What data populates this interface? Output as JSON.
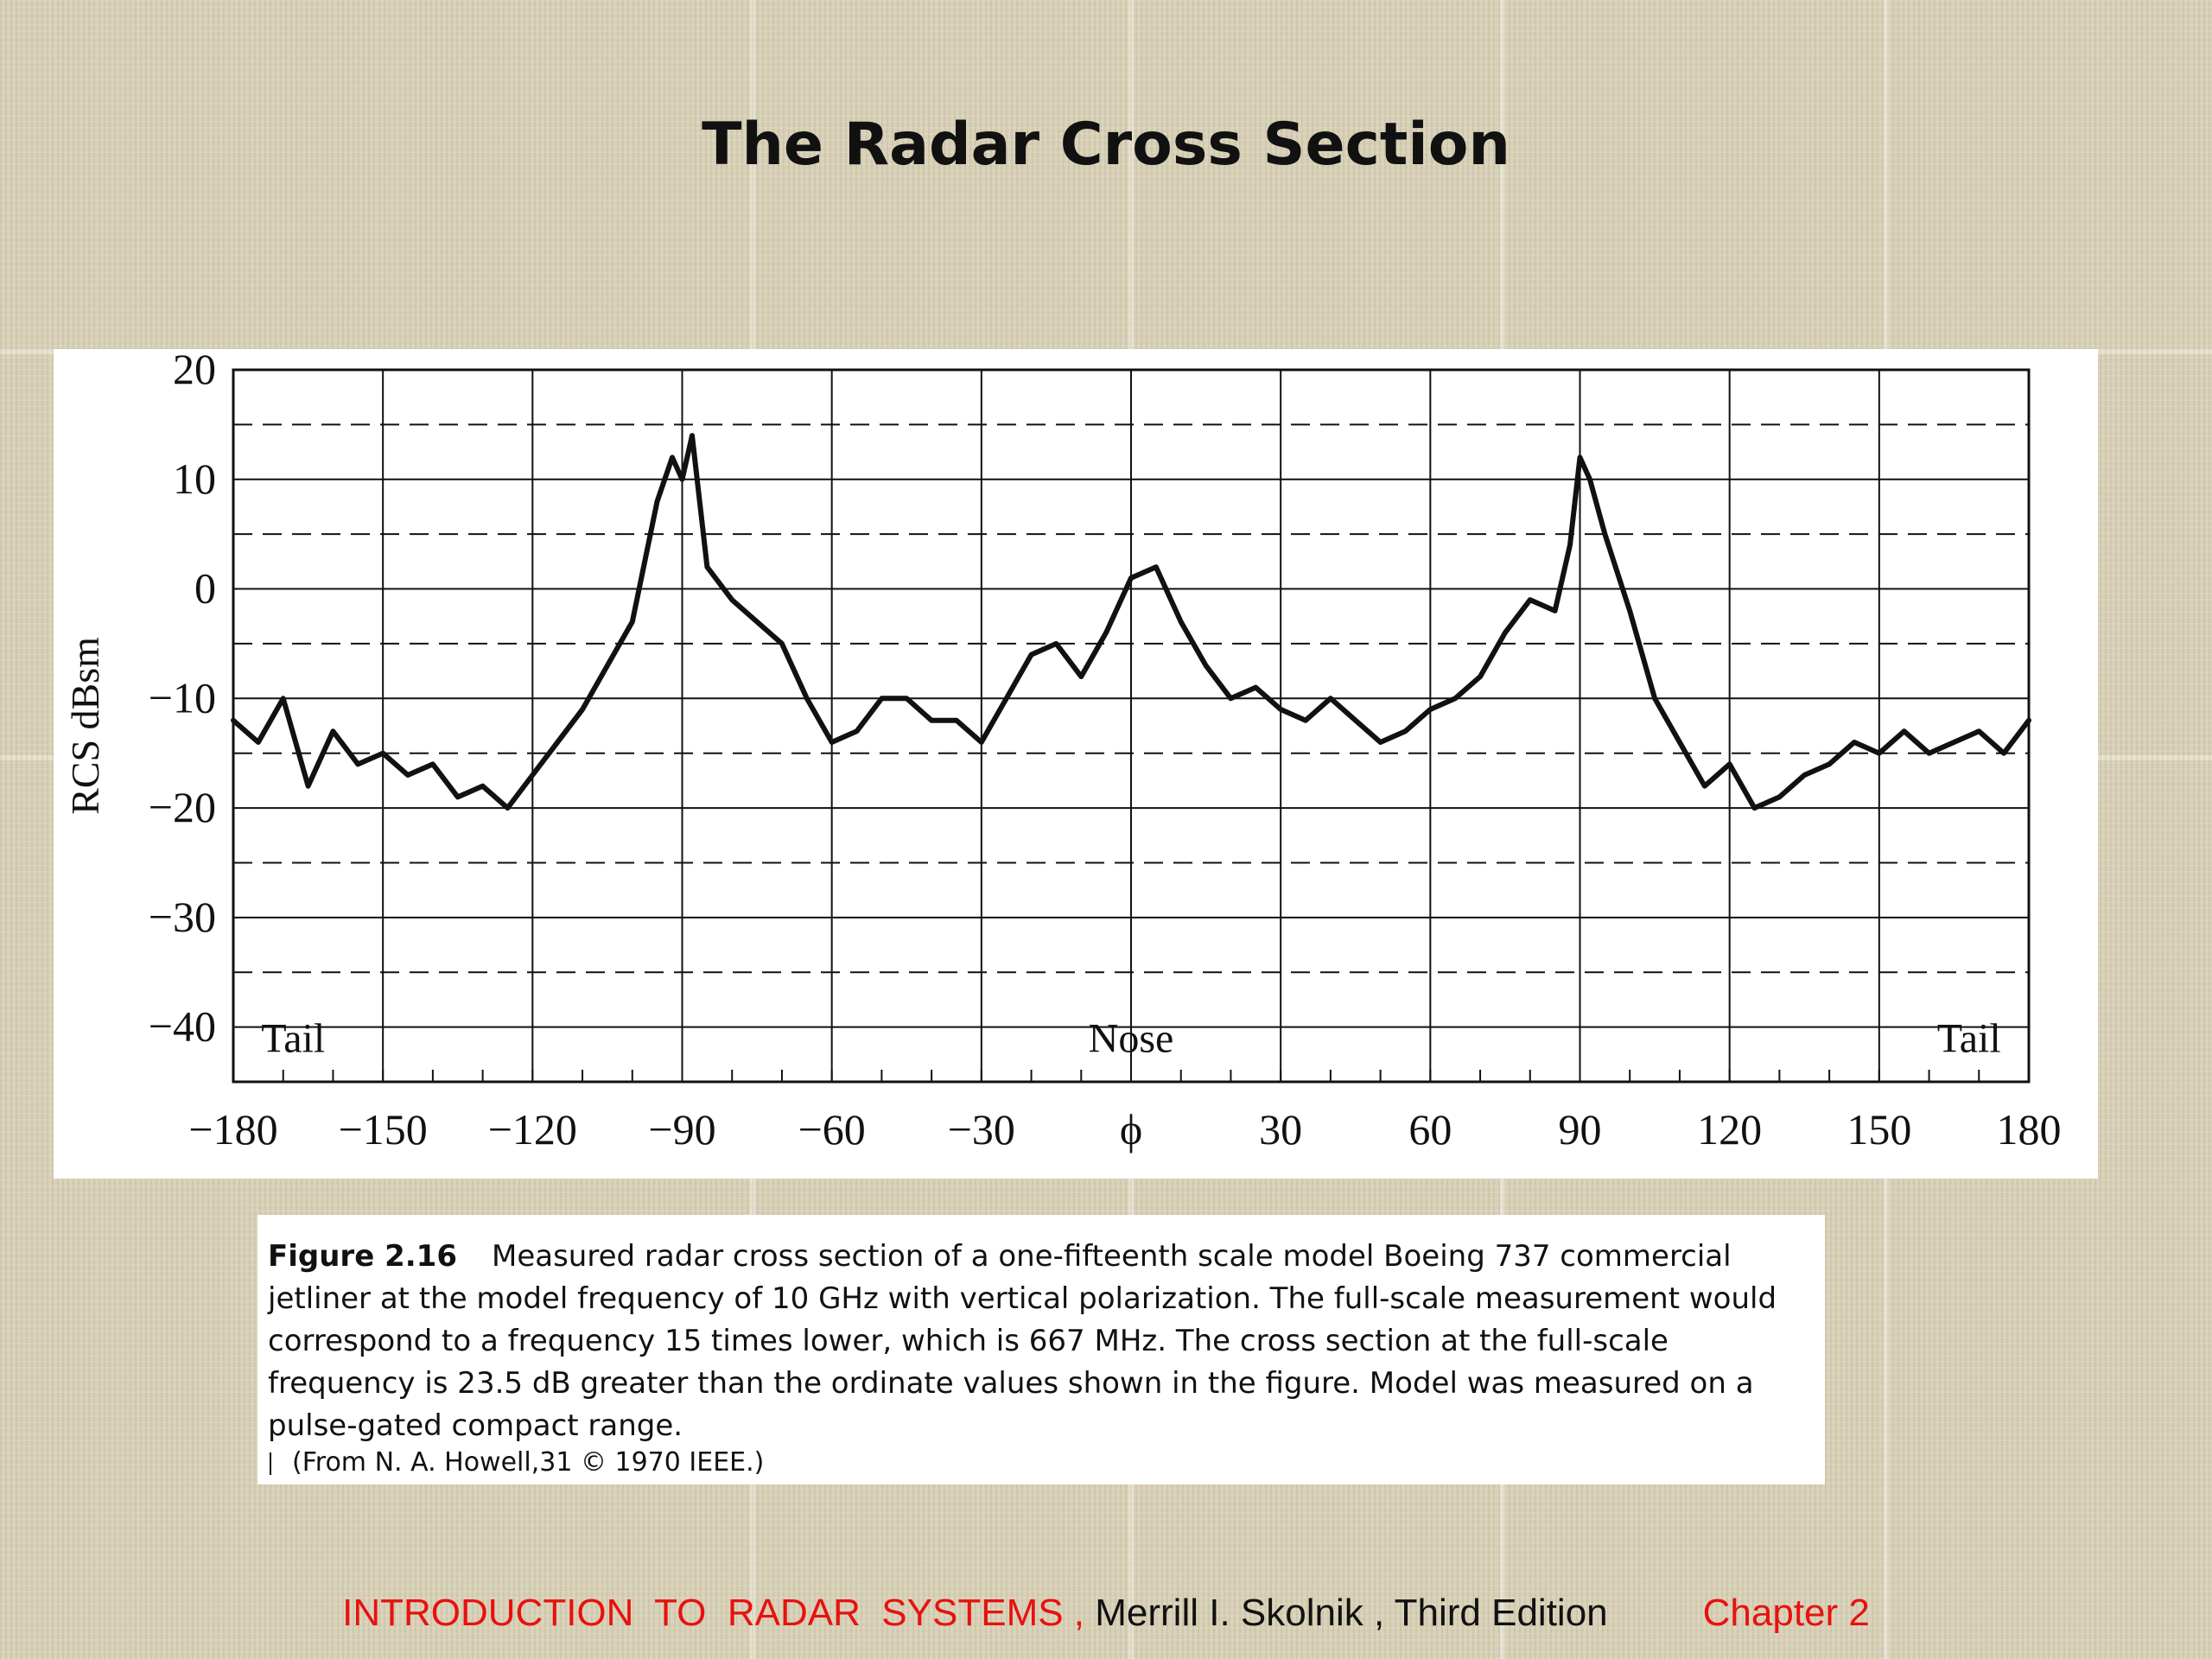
{
  "slide": {
    "title": "The Radar Cross Section"
  },
  "caption": {
    "label": "Figure 2.16",
    "text": "Measured radar cross section of a one-fifteenth scale model Boeing 737 commercial jetliner at the model frequency of 10 GHz with vertical polarization. The full-scale measurement would correspond to a frequency 15 times lower, which is 667 MHz. The cross section at the full-scale frequency is 23.5 dB greater than the ordinate values shown in the figure. Model was measured on a pulse-gated compact range.",
    "source": "(From N. A. Howell,31 © 1970 IEEE.)"
  },
  "footer": {
    "book": "INTRODUCTION  TO  RADAR  SYSTEMS ,",
    "author": " Merrill I. Skolnik , Third Edition",
    "chapter": "Chapter 2"
  },
  "colors": {
    "footer_book": "#e8110f",
    "trace": "#111111"
  },
  "chart_data": {
    "type": "line",
    "title": "",
    "xlabel": "",
    "ylabel": "RCS dBsm",
    "xlim": [
      -180,
      180
    ],
    "ylim": [
      -45,
      20
    ],
    "x_ticks": [
      -180,
      -150,
      -120,
      -90,
      -60,
      -30,
      0,
      30,
      60,
      90,
      120,
      150,
      180
    ],
    "x_tick_labels": [
      "−180",
      "−150",
      "−120",
      "−90",
      "−60",
      "−30",
      "ϕ",
      "30",
      "60",
      "90",
      "120",
      "150",
      "180"
    ],
    "y_ticks": [
      20,
      10,
      0,
      -10,
      -20,
      -30,
      -40
    ],
    "y_tick_labels": [
      "20",
      "10",
      "0",
      "−10",
      "−20",
      "−30",
      "−40"
    ],
    "grid": "solid major gridlines every 30° and 10 dB, dashed lines at intermediate 5 dB levels",
    "annotations": [
      {
        "text": "Tail",
        "x": -168,
        "y": -41
      },
      {
        "text": "Nose",
        "x": 0,
        "y": -41
      },
      {
        "text": "Tail",
        "x": 168,
        "y": -41
      }
    ],
    "series": [
      {
        "x": [
          -180,
          -175,
          -170,
          -165,
          -160,
          -155,
          -150,
          -145,
          -140,
          -135,
          -130,
          -125,
          -120,
          -115,
          -110,
          -105,
          -100,
          -95,
          -92,
          -90,
          -88,
          -85,
          -80,
          -75,
          -70,
          -65,
          -60,
          -55,
          -50,
          -45,
          -40,
          -35,
          -30,
          -25,
          -20,
          -15,
          -10,
          -5,
          0,
          5,
          10,
          15,
          20,
          25,
          30,
          35,
          40,
          45,
          50,
          55,
          60,
          65,
          70,
          75,
          80,
          85,
          88,
          90,
          92,
          95,
          100,
          105,
          110,
          115,
          120,
          125,
          130,
          135,
          140,
          145,
          150,
          155,
          160,
          165,
          170,
          175,
          180
        ],
        "y": [
          -12,
          -14,
          -10,
          -18,
          -13,
          -16,
          -15,
          -17,
          -16,
          -19,
          -18,
          -20,
          -17,
          -14,
          -11,
          -7,
          -3,
          8,
          12,
          10,
          14,
          2,
          -1,
          -3,
          -5,
          -10,
          -14,
          -13,
          -10,
          -10,
          -12,
          -12,
          -14,
          -10,
          -6,
          -5,
          -8,
          -4,
          1,
          2,
          -3,
          -7,
          -10,
          -9,
          -11,
          -12,
          -10,
          -12,
          -14,
          -13,
          -11,
          -10,
          -8,
          -4,
          -1,
          -2,
          4,
          12,
          10,
          5,
          -2,
          -10,
          -14,
          -18,
          -16,
          -20,
          -19,
          -17,
          -16,
          -14,
          -15,
          -13,
          -15,
          -14,
          -13,
          -15,
          -12
        ]
      }
    ]
  }
}
